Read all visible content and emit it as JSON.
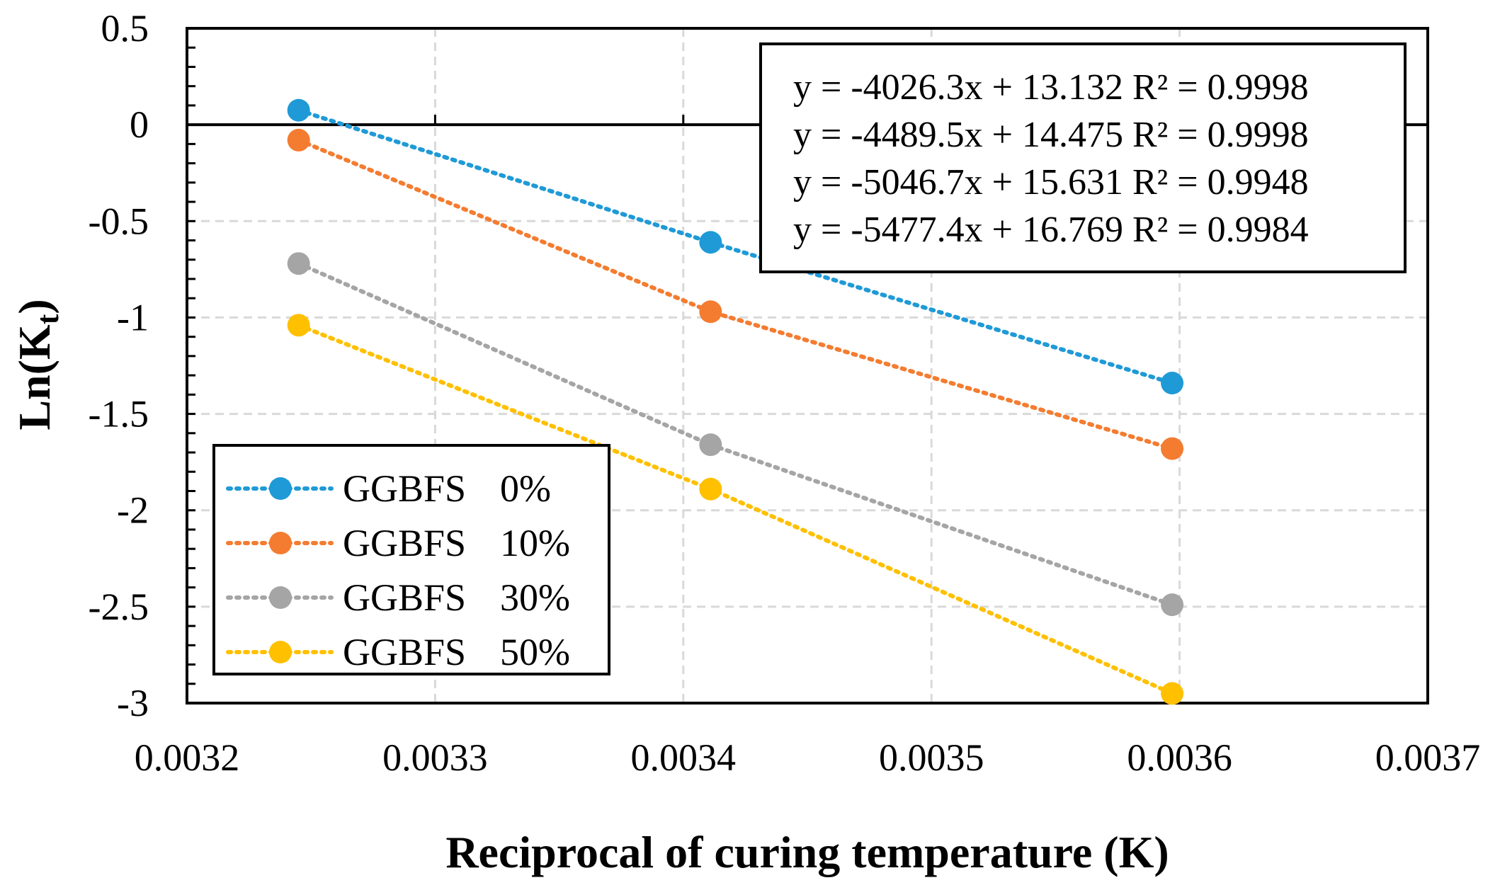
{
  "chart_data": {
    "type": "scatter",
    "title": "",
    "xlabel": "Reciprocal of curing temperature (K)",
    "ylabel_main": "Ln(K",
    "ylabel_sub": "t",
    "ylabel_close": ")",
    "xlim": [
      0.0032,
      0.0037
    ],
    "ylim": [
      -3,
      0.5
    ],
    "x_ticks": [
      0.0032,
      0.0033,
      0.0034,
      0.0035,
      0.0036,
      0.0037
    ],
    "x_tick_labels": [
      "0.0032",
      "0.0033",
      "0.0034",
      "0.0035",
      "0.0036",
      "0.0037"
    ],
    "y_ticks": [
      0.5,
      0,
      -0.5,
      -1,
      -1.5,
      -2,
      -2.5,
      -3
    ],
    "y_tick_labels": [
      "0.5",
      "0",
      "-0.5",
      "-1",
      "-1.5",
      "-2",
      "-2.5",
      "-3"
    ],
    "grid": true,
    "legend_position": "bottom-left",
    "series": [
      {
        "name_prefix": "GGBFS",
        "name_value": "0%",
        "color": "#1F9AD6",
        "x": [
          0.003245,
          0.003411,
          0.003597
        ],
        "y": [
          0.075,
          -0.61,
          -1.34
        ],
        "trend": {
          "slope": -4026.3,
          "intercept": 13.132,
          "r2": 0.9998
        },
        "equation": "y = -4026.3x + 13.132 R² = 0.9998"
      },
      {
        "name_prefix": "GGBFS",
        "name_value": "10%",
        "color": "#F47C30",
        "x": [
          0.003245,
          0.003411,
          0.003597
        ],
        "y": [
          -0.08,
          -0.97,
          -1.68
        ],
        "trend": {
          "slope": -4489.5,
          "intercept": 14.475,
          "r2": 0.9998
        },
        "equation": "y = -4489.5x + 14.475 R² = 0.9998"
      },
      {
        "name_prefix": "GGBFS",
        "name_value": "30%",
        "color": "#A5A5A5",
        "x": [
          0.003245,
          0.003411,
          0.003597
        ],
        "y": [
          -0.72,
          -1.66,
          -2.49
        ],
        "trend": {
          "slope": -5046.7,
          "intercept": 15.631,
          "r2": 0.9948
        },
        "equation": "y = -5046.7x + 15.631 R² = 0.9948"
      },
      {
        "name_prefix": "GGBFS",
        "name_value": "50%",
        "color": "#FFC000",
        "x": [
          0.003245,
          0.003411,
          0.003597
        ],
        "y": [
          -1.04,
          -1.89,
          -2.95
        ],
        "trend": {
          "slope": -5477.4,
          "intercept": 16.769,
          "r2": 0.9984
        },
        "equation": "y = -5477.4x + 16.769 R² = 0.9984"
      }
    ]
  }
}
